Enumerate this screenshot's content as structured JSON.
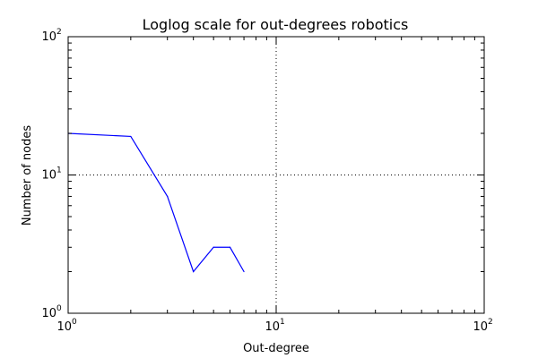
{
  "chart_data": {
    "type": "line",
    "title": "Loglog scale for out-degrees robotics",
    "xlabel": "Out-degree",
    "ylabel": "Number of nodes",
    "xscale": "log",
    "yscale": "log",
    "xlim": [
      1,
      100
    ],
    "ylim": [
      1,
      100
    ],
    "grid": true,
    "legend": "none",
    "x_ticks": [
      {
        "base": "10",
        "exp": "0",
        "value": 1
      },
      {
        "base": "10",
        "exp": "1",
        "value": 10
      },
      {
        "base": "10",
        "exp": "2",
        "value": 100
      }
    ],
    "y_ticks": [
      {
        "base": "10",
        "exp": "0",
        "value": 1
      },
      {
        "base": "10",
        "exp": "1",
        "value": 10
      },
      {
        "base": "10",
        "exp": "2",
        "value": 100
      }
    ],
    "series": [
      {
        "color": "#0000ff",
        "x": [
          1,
          2,
          3,
          4,
          5,
          6,
          7
        ],
        "y": [
          20,
          19,
          7,
          2,
          3,
          3,
          2
        ]
      }
    ]
  }
}
